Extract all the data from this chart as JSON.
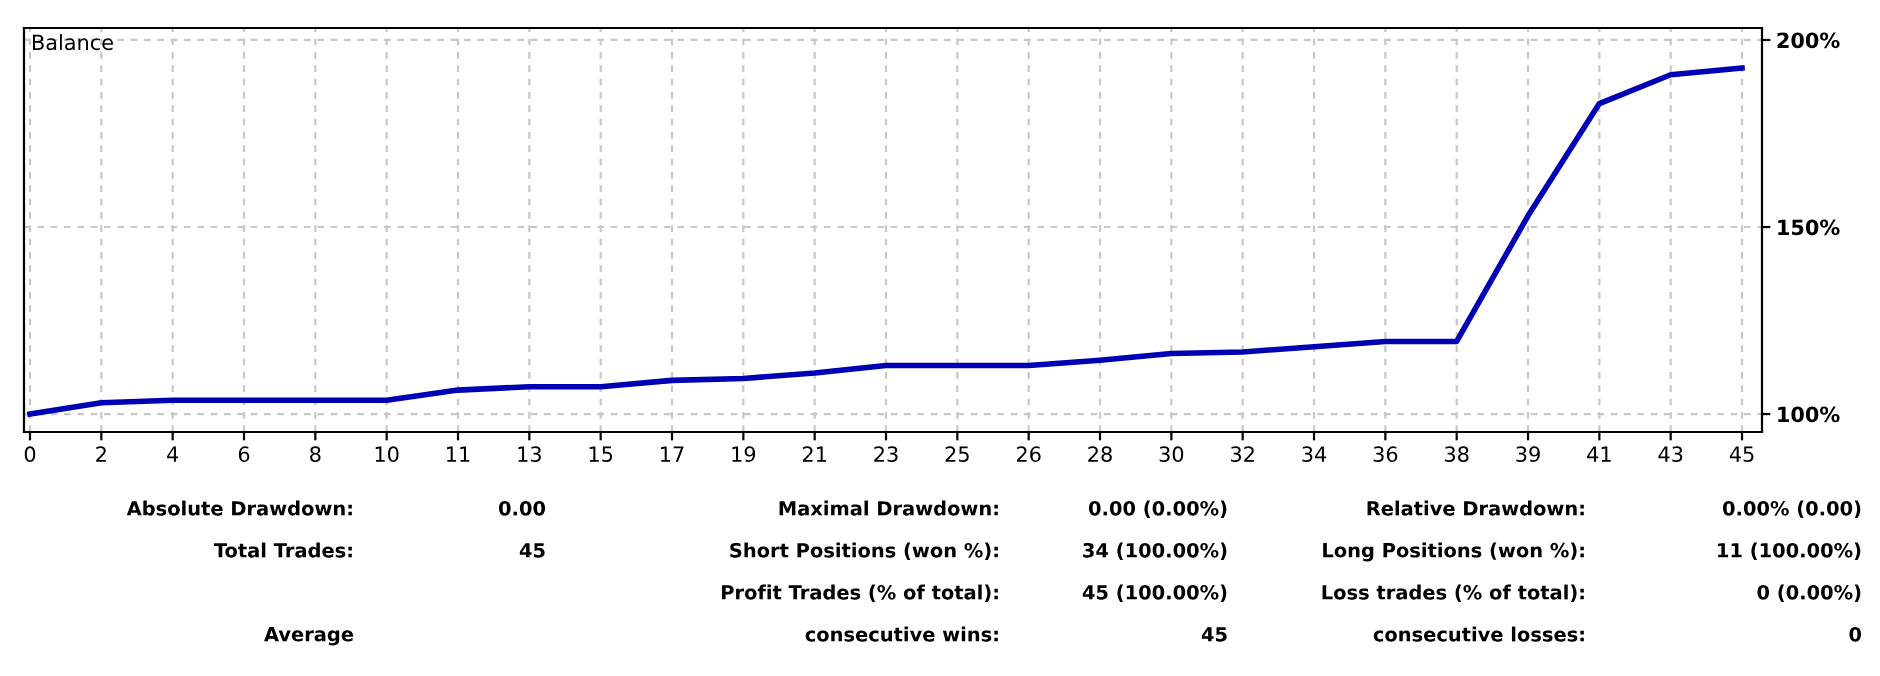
{
  "chart_data": {
    "type": "line",
    "title": "Balance",
    "categories": [
      "0",
      "2",
      "4",
      "6",
      "8",
      "10",
      "11",
      "13",
      "15",
      "17",
      "19",
      "21",
      "23",
      "25",
      "26",
      "28",
      "30",
      "32",
      "34",
      "36",
      "38",
      "39",
      "41",
      "43",
      "45"
    ],
    "series": [
      {
        "color": "#0000b4",
        "values": [
          100,
          103,
          103.7,
          103.7,
          103.7,
          103.7,
          106.4,
          107.3,
          107.3,
          109,
          109.5,
          111,
          113,
          113,
          113,
          114.4,
          116.2,
          116.6,
          118,
          119.4,
          119.4,
          153,
          183,
          190.7,
          192.5
        ]
      }
    ],
    "ylim": [
      95.2,
      203.2
    ],
    "yticks": [
      {
        "value": 100,
        "label": "100%"
      },
      {
        "value": 150,
        "label": "150%"
      },
      {
        "value": 200,
        "label": "200%"
      }
    ],
    "grid": true,
    "line_style": "solid",
    "marker": "none",
    "annotations": [
      "Absolute Drawdown:",
      "0.00",
      "Maximal Drawdown:",
      "0.00 (0.00%)",
      "Relative Drawdown:",
      "0.00% (0.00)",
      "Total Trades:",
      "45",
      "Short Positions (won %):",
      "34 (100.00%)",
      "Long Positions (won %):",
      "11 (100.00%)",
      "Profit Trades (% of total):",
      "45 (100.00%)",
      "Loss trades (% of total):",
      "0 (0.00%)",
      "Average",
      "consecutive wins:",
      "45",
      "consecutive losses:",
      "0"
    ]
  }
}
